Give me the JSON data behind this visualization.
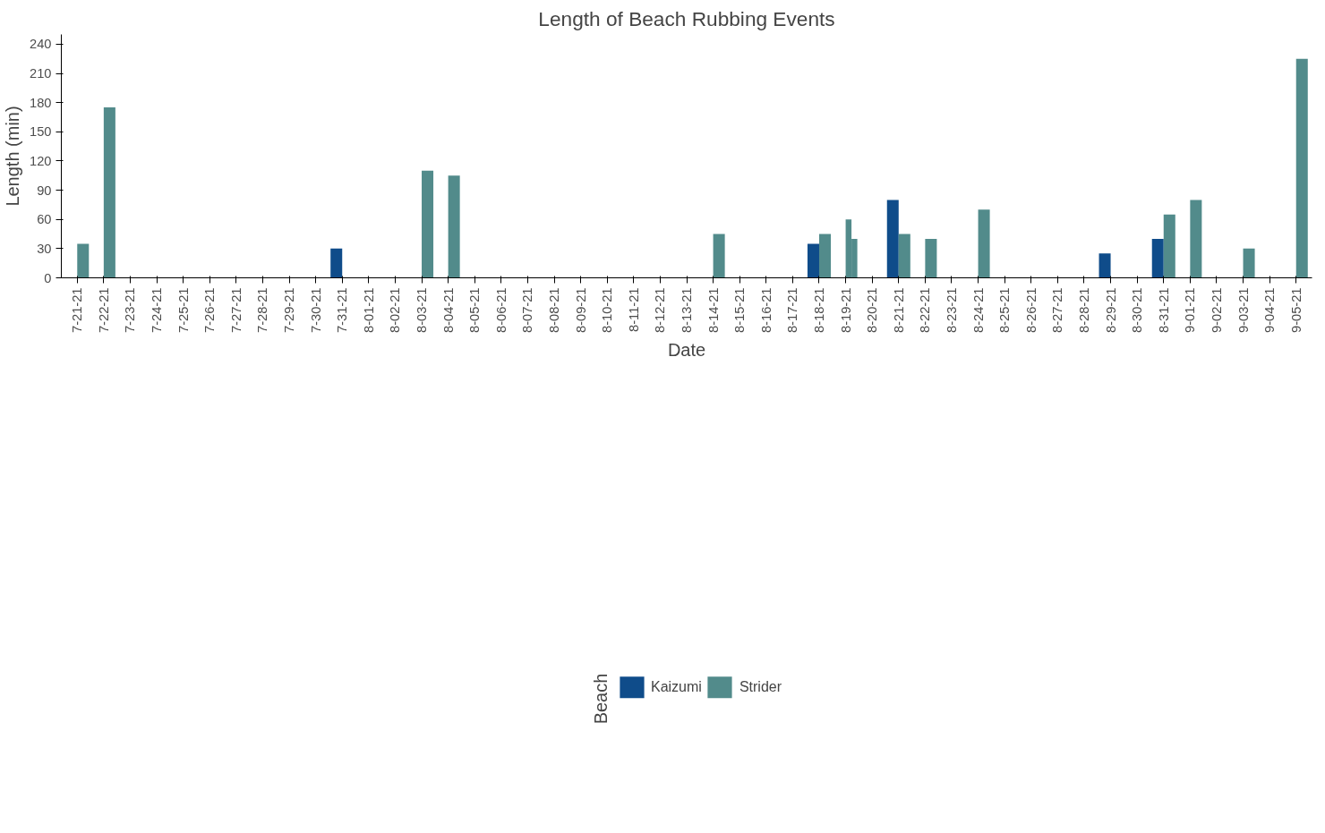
{
  "chart_data": {
    "type": "bar",
    "title": "Length of Beach Rubbing Events",
    "xlabel": "Date",
    "ylabel": "Length (min)",
    "legend_title": "Beach",
    "legend": "bottom",
    "grid": false,
    "categories": [
      "7-21-21",
      "7-22-21",
      "7-23-21",
      "7-24-21",
      "7-25-21",
      "7-26-21",
      "7-27-21",
      "7-28-21",
      "7-29-21",
      "7-30-21",
      "7-31-21",
      "8-01-21",
      "8-02-21",
      "8-03-21",
      "8-04-21",
      "8-05-21",
      "8-06-21",
      "8-07-21",
      "8-08-21",
      "8-09-21",
      "8-10-21",
      "8-11-21",
      "8-12-21",
      "8-13-21",
      "8-14-21",
      "8-15-21",
      "8-16-21",
      "8-17-21",
      "8-18-21",
      "8-19-21",
      "8-20-21",
      "8-21-21",
      "8-22-21",
      "8-23-21",
      "8-24-21",
      "8-25-21",
      "8-26-21",
      "8-27-21",
      "8-28-21",
      "8-29-21",
      "8-30-21",
      "8-31-21",
      "9-01-21",
      "9-02-21",
      "9-03-21",
      "9-04-21",
      "9-05-21"
    ],
    "series": [
      {
        "name": "Kaizumi",
        "color": "#0f4c8a",
        "values": [
          null,
          null,
          null,
          null,
          null,
          null,
          null,
          null,
          null,
          null,
          30,
          null,
          null,
          null,
          null,
          null,
          null,
          null,
          null,
          null,
          null,
          null,
          null,
          null,
          null,
          null,
          null,
          null,
          35,
          null,
          null,
          80,
          null,
          null,
          null,
          null,
          null,
          null,
          null,
          25,
          null,
          40,
          null,
          null,
          null,
          null,
          null
        ]
      },
      {
        "name": "Strider",
        "color": "#528b8b",
        "values": [
          35,
          175,
          null,
          null,
          null,
          null,
          null,
          null,
          null,
          null,
          null,
          null,
          null,
          110,
          105,
          null,
          null,
          null,
          null,
          null,
          null,
          null,
          null,
          null,
          45,
          null,
          null,
          null,
          45,
          60,
          null,
          45,
          40,
          null,
          70,
          null,
          null,
          null,
          null,
          null,
          null,
          65,
          80,
          null,
          30,
          null,
          225
        ]
      },
      {
        "color": "#528b8b",
        "values": [
          null,
          null,
          null,
          null,
          null,
          null,
          null,
          null,
          null,
          null,
          null,
          null,
          null,
          null,
          null,
          null,
          null,
          null,
          null,
          null,
          null,
          null,
          null,
          null,
          null,
          null,
          null,
          null,
          null,
          40,
          null,
          null,
          null,
          null,
          null,
          null,
          null,
          null,
          null,
          null,
          null,
          null,
          null,
          null,
          null,
          null,
          null
        ]
      }
    ],
    "ylim": [
      0,
      250
    ],
    "yticks": [
      0,
      30,
      60,
      90,
      120,
      150,
      180,
      210,
      240
    ]
  }
}
